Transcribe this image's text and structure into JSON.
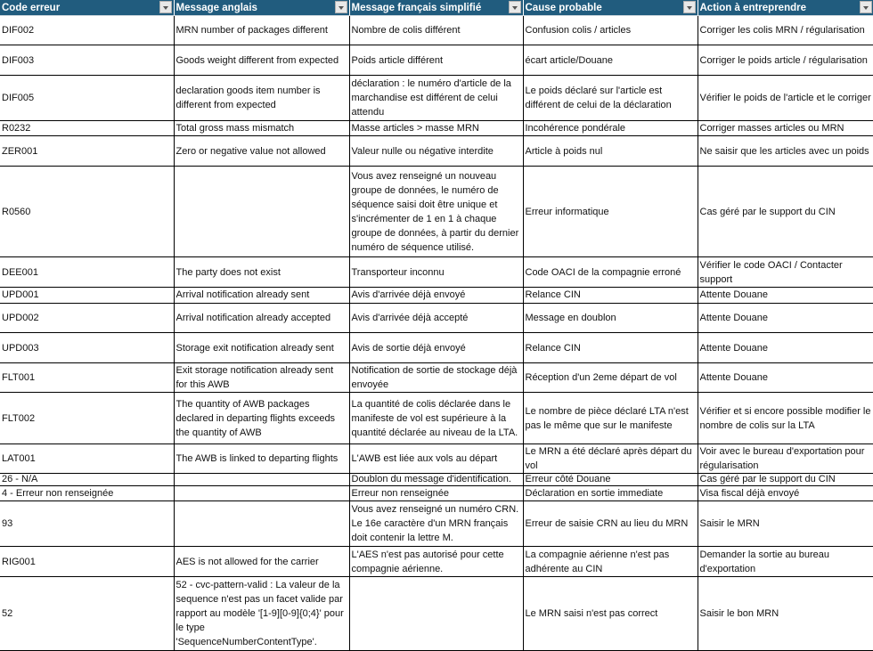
{
  "header_color": "#215c7e",
  "columns": [
    "Code erreur",
    "Message anglais",
    "Message français simplifié",
    "Cause probable",
    "Action à  entreprendre"
  ],
  "rows": [
    [
      "DIF002",
      "MRN number of packages different",
      "Nombre de colis différent",
      "Confusion colis / articles",
      "Corriger les colis MRN / régularisation"
    ],
    [
      "DIF003",
      "Goods weight different from expected",
      "Poids article différent",
      "écart article/Douane",
      "Corriger le poids article / régularisation"
    ],
    [
      "DIF005",
      "declaration goods item number is different from expected",
      "déclaration : le numéro d'article de la marchandise est différent de celui attendu",
      "Le poids déclaré sur l'article est différent de celui de la déclaration",
      "Vérifier le poids de l'article et le corriger"
    ],
    [
      "R0232",
      "Total gross mass mismatch",
      "Masse articles > masse MRN",
      "Incohérence pondérale",
      "Corriger masses articles ou MRN"
    ],
    [
      "ZER001",
      "Zero or negative value not allowed",
      "Valeur nulle ou négative interdite",
      "Article à  poids nul",
      "Ne saisir que les articles avec un poids"
    ],
    [
      "R0560",
      "",
      "Vous avez renseigné un nouveau groupe de données, le numéro de séquence saisi doit être unique et s'incrémenter de 1 en 1 à chaque groupe de données, à partir du dernier numéro de séquence utilisé.",
      "Erreur informatique",
      "Cas géré par le support du CIN"
    ],
    [
      "DEE001",
      "The party does not exist",
      "Transporteur inconnu",
      "Code OACI de la compagnie erroné",
      "Vérifier le code OACI / Contacter support"
    ],
    [
      "UPD001",
      "Arrival notification already sent",
      "Avis d'arrivée déjà  envoyé",
      "Relance CIN",
      "Attente Douane"
    ],
    [
      "UPD002",
      "Arrival notification already accepted",
      "Avis d'arrivée déjà  accepté",
      "Message en doublon",
      "Attente Douane"
    ],
    [
      "UPD003",
      "Storage exit notification already sent",
      "Avis de sortie déjà  envoyé",
      "Relance CIN",
      "Attente Douane"
    ],
    [
      "FLT001",
      " Exit storage notification already sent for this AWB",
      " Notification de sortie de stockage déjà envoyée",
      "Réception d'un 2eme départ de vol",
      "Attente Douane"
    ],
    [
      "FLT002",
      "The quantity of AWB packages declared in departing flights exceeds the quantity of AWB",
      "La quantité de colis déclarée  dans le manifeste de vol est supérieure à la quantité déclarée au niveau de la LTA.",
      "Le nombre de pièce déclaré LTA n'est pas le même que sur le manifeste",
      "Vérifier et si encore possible modifier le nombre de colis sur la LTA"
    ],
    [
      "LAT001",
      "The AWB is linked to departing flights",
      " L'AWB est liée aux vols au départ",
      "Le MRN a été déclaré après départ du vol",
      "Voir avec le bureau d'exportation pour régularisation"
    ],
    [
      "26 - N/A",
      "",
      "Doublon du message d'identification.",
      "Erreur côté Douane",
      "Cas géré par le support du CIN"
    ],
    [
      "4 - Erreur non renseignée",
      "",
      "Erreur non renseignée",
      "Déclaration en sortie immediate",
      "Visa fiscal déjà envoyé"
    ],
    [
      "93",
      "",
      "Vous avez renseigné un numéro CRN. Le 16e caractère d'un MRN français doit contenir la lettre M.",
      "Erreur de saisie CRN au lieu du MRN",
      "Saisir le MRN"
    ],
    [
      "RIG001",
      " AES is not allowed for the carrier",
      "L'AES n'est pas autorisé pour cette compagnie aérienne.",
      " La compagnie aérienne n'est pas adhérente au CIN",
      "Demander la sortie au bureau d'exportation"
    ],
    [
      "52",
      "52 - cvc-pattern-valid : La valeur de la sequence n'est pas un facet valide par rapport au modèle '[1-9][0-9]{0;4}' pour le type 'SequenceNumberContentType'.",
      "",
      "Le MRN saisi n'est pas correct",
      "Saisir le bon MRN"
    ]
  ]
}
